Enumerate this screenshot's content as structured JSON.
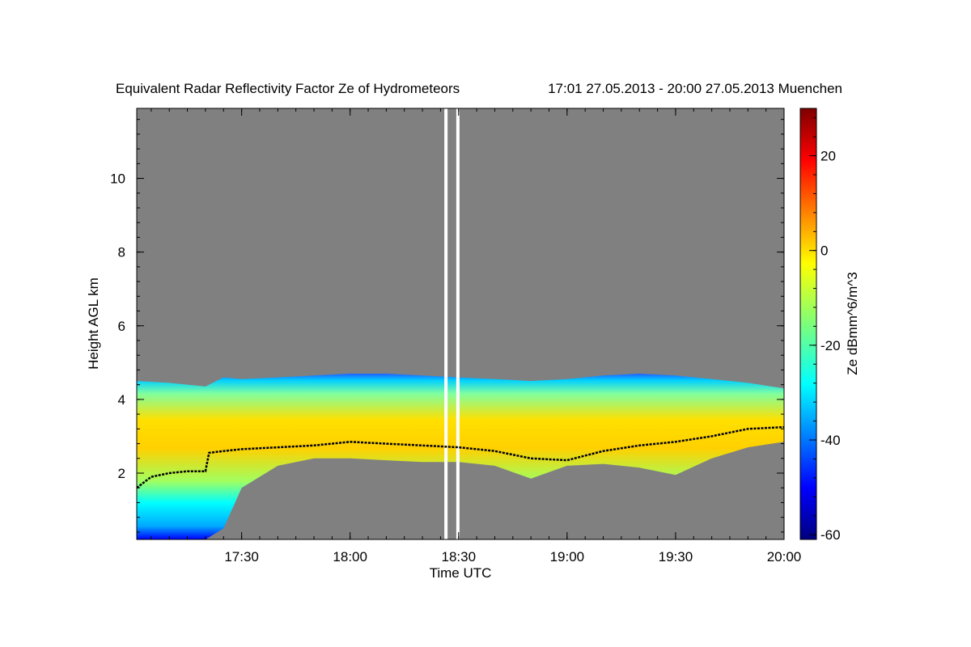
{
  "chart_data": {
    "type": "heatmap",
    "title": "Equivalent Radar Reflectivity Factor Ze of Hydrometeors",
    "subtitle": "17:01 27.05.2013 - 20:00 27.05.2013 Muenchen",
    "xlabel": "Time UTC",
    "ylabel": "Height AGL km",
    "colorbar_label": "Ze dBmm^6/m^3",
    "x_range": [
      "17:01",
      "20:00"
    ],
    "x_range_minutes": [
      1021,
      1200
    ],
    "y_range": [
      0.2,
      11.9
    ],
    "x_ticks": [
      {
        "label": "17:30",
        "minutes": 1050
      },
      {
        "label": "18:00",
        "minutes": 1080
      },
      {
        "label": "18:30",
        "minutes": 1110
      },
      {
        "label": "19:00",
        "minutes": 1140
      },
      {
        "label": "19:30",
        "minutes": 1170
      },
      {
        "label": "20:00",
        "minutes": 1200
      }
    ],
    "y_ticks": [
      {
        "label": "2",
        "value": 2
      },
      {
        "label": "4",
        "value": 4
      },
      {
        "label": "6",
        "value": 6
      },
      {
        "label": "8",
        "value": 8
      },
      {
        "label": "10",
        "value": 10
      }
    ],
    "colorbar_range": [
      -61,
      30
    ],
    "colorbar_ticks": [
      {
        "label": "20",
        "value": 20
      },
      {
        "label": "0",
        "value": 0
      },
      {
        "label": "-20",
        "value": -20
      },
      {
        "label": "-40",
        "value": -40
      },
      {
        "label": "-60",
        "value": -60
      }
    ],
    "colormap": "jet",
    "no_data_color": "#808080",
    "data_gaps": [
      {
        "start": 1106.5,
        "end": 1109.8
      }
    ],
    "cloud_layer": {
      "times": [
        1021,
        1030,
        1040,
        1045,
        1050,
        1060,
        1070,
        1080,
        1090,
        1100,
        1110,
        1120,
        1130,
        1140,
        1150,
        1160,
        1170,
        1180,
        1190,
        1200
      ],
      "top": [
        4.5,
        4.45,
        4.35,
        4.6,
        4.55,
        4.6,
        4.65,
        4.7,
        4.7,
        4.65,
        4.6,
        4.55,
        4.5,
        4.55,
        4.65,
        4.7,
        4.65,
        4.55,
        4.45,
        4.3
      ],
      "base": [
        0.2,
        0.2,
        0.2,
        0.5,
        1.6,
        2.2,
        2.4,
        2.4,
        2.35,
        2.3,
        2.3,
        2.2,
        1.85,
        2.2,
        2.25,
        2.15,
        1.95,
        2.4,
        2.7,
        2.85
      ]
    },
    "black_line_series": {
      "times": [
        1021,
        1025,
        1030,
        1035,
        1040,
        1041,
        1045,
        1050,
        1060,
        1070,
        1080,
        1090,
        1100,
        1110,
        1120,
        1130,
        1140,
        1150,
        1160,
        1170,
        1180,
        1190,
        1200
      ],
      "heights": [
        1.6,
        1.9,
        2.0,
        2.05,
        2.05,
        2.55,
        2.6,
        2.65,
        2.7,
        2.75,
        2.85,
        2.8,
        2.75,
        2.7,
        2.6,
        2.4,
        2.35,
        2.6,
        2.75,
        2.85,
        3.0,
        3.2,
        3.25
      ]
    },
    "grid": false
  }
}
